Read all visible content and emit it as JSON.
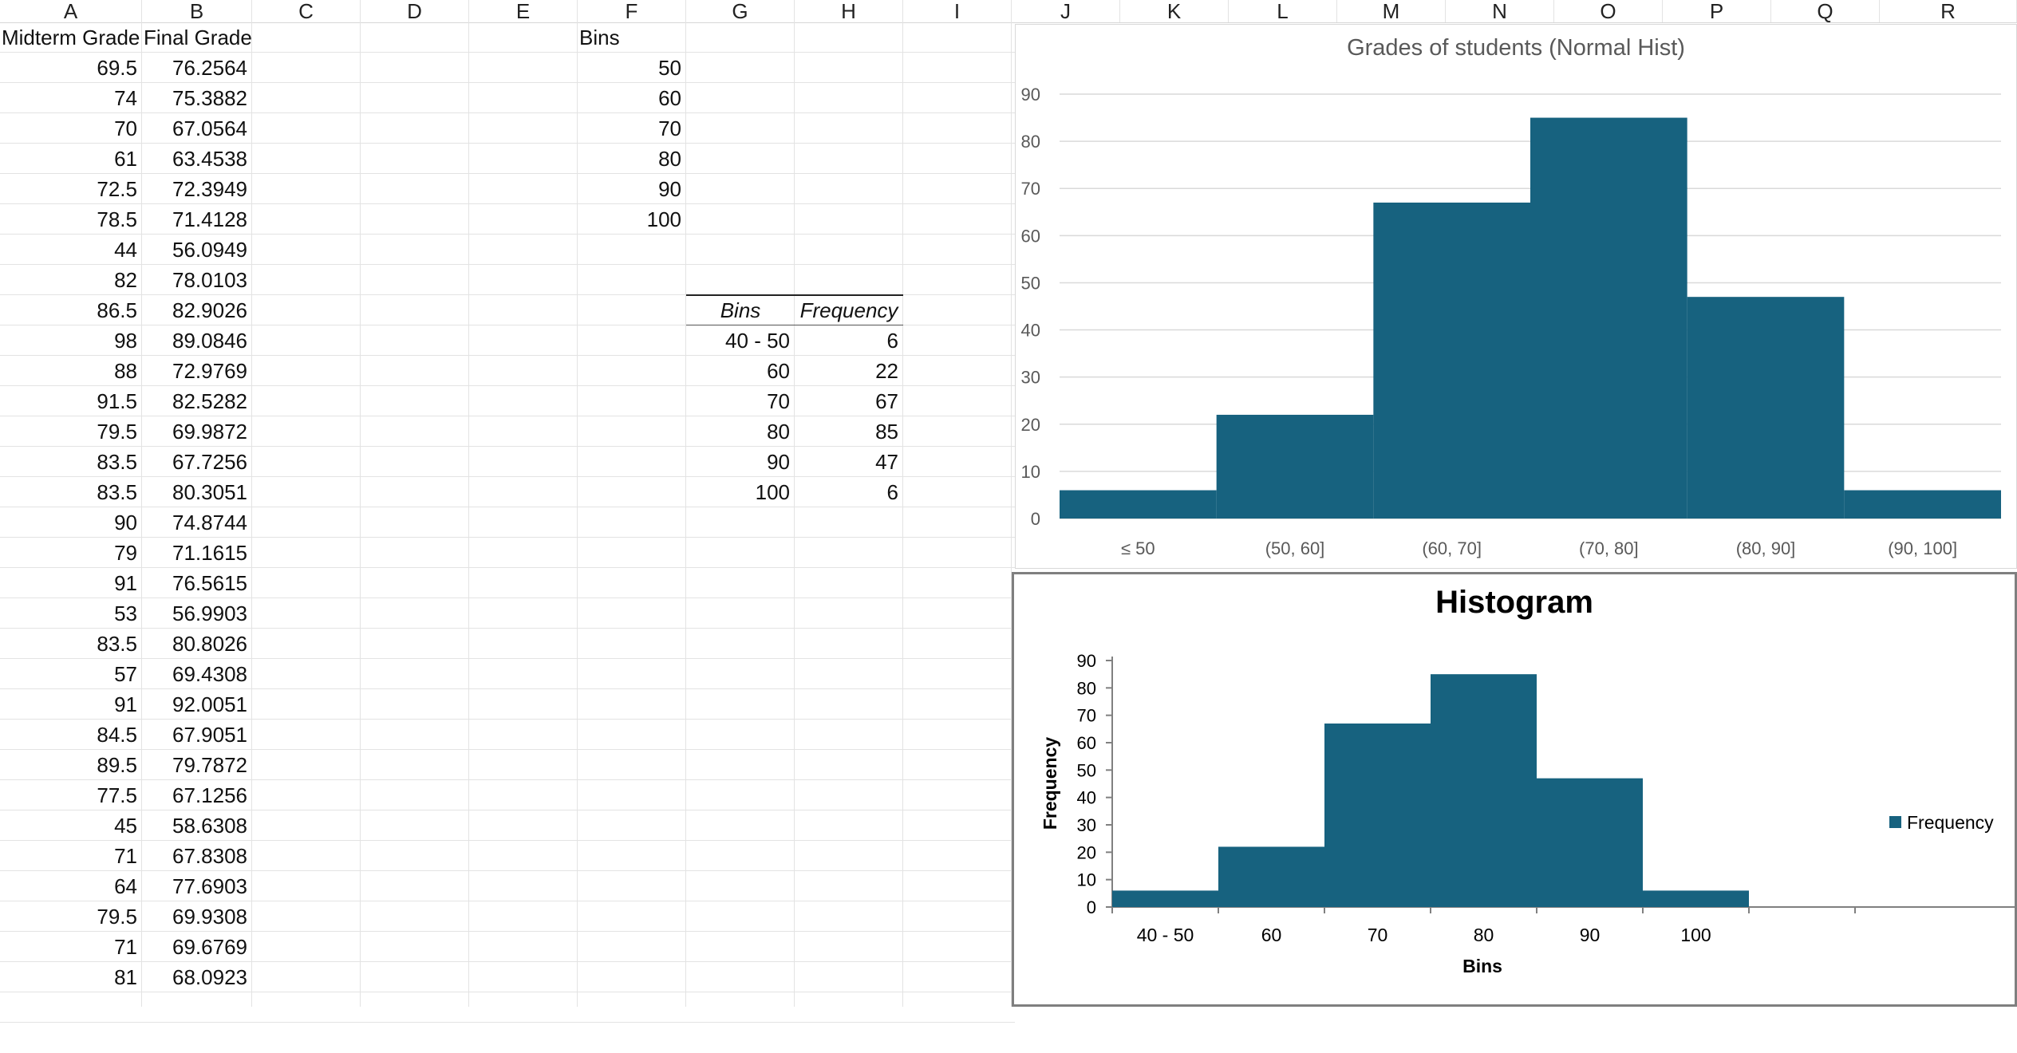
{
  "columns": [
    "A",
    "B",
    "C",
    "D",
    "E",
    "F",
    "G",
    "H",
    "I",
    "J",
    "K",
    "L",
    "M",
    "N",
    "O",
    "P",
    "Q",
    "R"
  ],
  "sheet": {
    "headers": {
      "midterm": "Midterm Grade",
      "final": "Final Grade",
      "bins": "Bins"
    },
    "rows": [
      [
        "69.5",
        "76.2564"
      ],
      [
        "74",
        "75.3882"
      ],
      [
        "70",
        "67.0564"
      ],
      [
        "61",
        "63.4538"
      ],
      [
        "72.5",
        "72.3949"
      ],
      [
        "78.5",
        "71.4128"
      ],
      [
        "44",
        "56.0949"
      ],
      [
        "82",
        "78.0103"
      ],
      [
        "86.5",
        "82.9026"
      ],
      [
        "98",
        "89.0846"
      ],
      [
        "88",
        "72.9769"
      ],
      [
        "91.5",
        "82.5282"
      ],
      [
        "79.5",
        "69.9872"
      ],
      [
        "83.5",
        "67.7256"
      ],
      [
        "83.5",
        "80.3051"
      ],
      [
        "90",
        "74.8744"
      ],
      [
        "79",
        "71.1615"
      ],
      [
        "91",
        "76.5615"
      ],
      [
        "53",
        "56.9903"
      ],
      [
        "83.5",
        "80.8026"
      ],
      [
        "57",
        "69.4308"
      ],
      [
        "91",
        "92.0051"
      ],
      [
        "84.5",
        "67.9051"
      ],
      [
        "89.5",
        "79.7872"
      ],
      [
        "77.5",
        "67.1256"
      ],
      [
        "45",
        "58.6308"
      ],
      [
        "71",
        "67.8308"
      ],
      [
        "64",
        "77.6903"
      ],
      [
        "79.5",
        "69.9308"
      ],
      [
        "71",
        "69.6769"
      ],
      [
        "81",
        "68.0923"
      ]
    ],
    "bins": [
      "50",
      "60",
      "70",
      "80",
      "90",
      "100"
    ],
    "freq_table": {
      "header_bins": "Bins",
      "header_freq": "Frequency",
      "rows": [
        [
          "40 - 50",
          "6"
        ],
        [
          "60",
          "22"
        ],
        [
          "70",
          "67"
        ],
        [
          "80",
          "85"
        ],
        [
          "90",
          "47"
        ],
        [
          "100",
          "6"
        ]
      ]
    }
  },
  "chart_data": [
    {
      "type": "bar",
      "title": "Grades of students (Normal Hist)",
      "categories": [
        "≤ 50",
        "(50, 60]",
        "(60, 70]",
        "(70, 80]",
        "(80, 90]",
        "(90, 100]"
      ],
      "values": [
        6,
        22,
        67,
        85,
        47,
        6
      ],
      "ylim": [
        0,
        90
      ],
      "yticks": [
        0,
        10,
        20,
        30,
        40,
        50,
        60,
        70,
        80,
        90
      ],
      "color": "#17627f",
      "grid": true,
      "xlabel": "",
      "ylabel": ""
    },
    {
      "type": "bar",
      "title": "Histogram",
      "categories": [
        "40 - 50",
        "60",
        "70",
        "80",
        "90",
        "100"
      ],
      "values": [
        6,
        22,
        67,
        85,
        47,
        6
      ],
      "ylim": [
        0,
        90
      ],
      "yticks": [
        0,
        10,
        20,
        30,
        40,
        50,
        60,
        70,
        80,
        90
      ],
      "color": "#17627f",
      "grid": false,
      "xlabel": "Bins",
      "ylabel": "Frequency",
      "series": [
        {
          "name": "Frequency",
          "values": [
            6,
            22,
            67,
            85,
            47,
            6
          ]
        }
      ],
      "legend": "right"
    }
  ]
}
